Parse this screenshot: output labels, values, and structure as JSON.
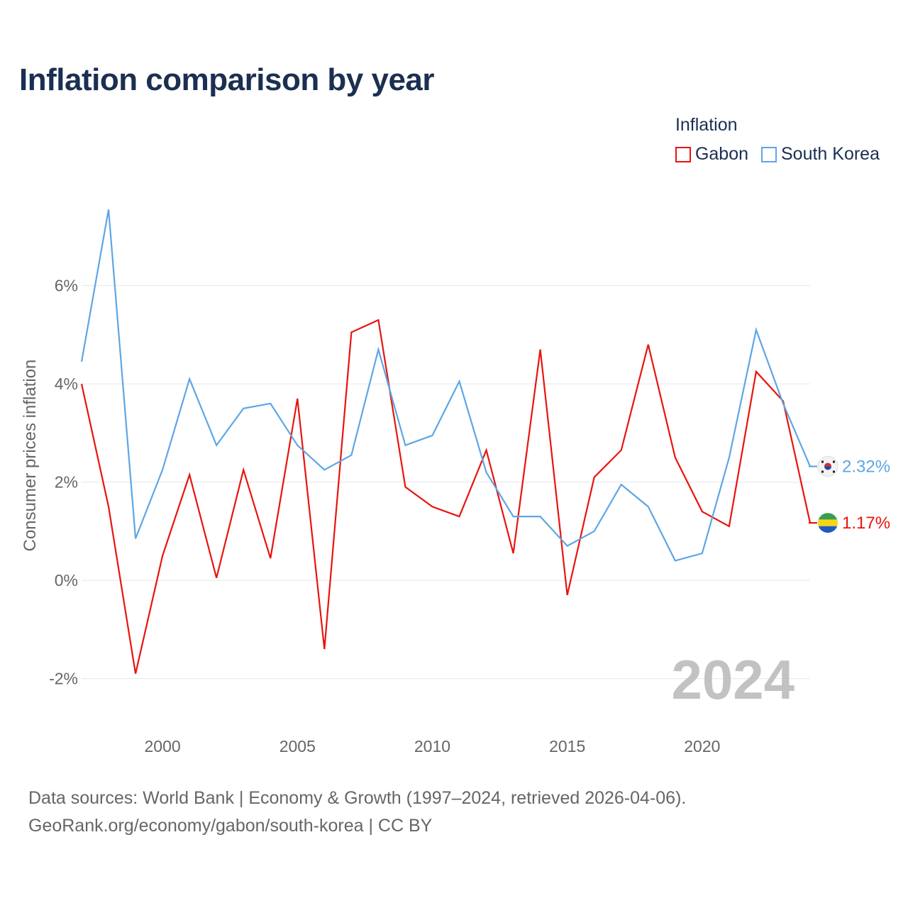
{
  "title": "Inflation comparison by year",
  "legend": {
    "title": "Inflation",
    "items": [
      {
        "label": "Gabon",
        "color": "#e8140d"
      },
      {
        "label": "South Korea",
        "color": "#5ea6e4"
      }
    ]
  },
  "chart_data": {
    "type": "line",
    "ylabel": "Consumer prices inflation",
    "xlim": [
      1997,
      2024
    ],
    "ylim": [
      -2.8,
      7.8
    ],
    "yticks": [
      -2,
      0,
      2,
      4,
      6
    ],
    "ytick_labels": [
      "-2%",
      "0%",
      "2%",
      "4%",
      "6%"
    ],
    "xticks": [
      2000,
      2005,
      2010,
      2015,
      2020
    ],
    "xtick_labels": [
      "2000",
      "2005",
      "2010",
      "2015",
      "2020"
    ],
    "year_label": "2024",
    "x": [
      1997,
      1998,
      1999,
      2000,
      2001,
      2002,
      2003,
      2004,
      2005,
      2006,
      2007,
      2008,
      2009,
      2010,
      2011,
      2012,
      2013,
      2014,
      2015,
      2016,
      2017,
      2018,
      2019,
      2020,
      2021,
      2022,
      2023,
      2024
    ],
    "series": [
      {
        "name": "Gabon",
        "color": "#e8140d",
        "end_label": "1.17%",
        "flag": "gabon-flag-icon",
        "values": [
          4.0,
          1.5,
          -1.9,
          0.5,
          2.15,
          0.05,
          2.25,
          0.45,
          3.7,
          -1.4,
          5.05,
          5.3,
          1.9,
          1.5,
          1.3,
          2.65,
          0.55,
          4.7,
          -0.3,
          2.1,
          2.65,
          4.8,
          2.5,
          1.4,
          1.1,
          4.25,
          3.65,
          1.17
        ]
      },
      {
        "name": "South Korea",
        "color": "#5ea6e4",
        "end_label": "2.32%",
        "flag": "south-korea-flag-icon",
        "values": [
          4.45,
          7.55,
          0.85,
          2.25,
          4.1,
          2.75,
          3.5,
          3.6,
          2.75,
          2.25,
          2.55,
          4.7,
          2.75,
          2.95,
          4.05,
          2.2,
          1.3,
          1.3,
          0.7,
          1.0,
          1.95,
          1.5,
          0.4,
          0.55,
          2.5,
          5.1,
          3.6,
          2.32
        ]
      }
    ]
  },
  "sources": {
    "line1": "Data sources: World Bank | Economy & Growth (1997–2024, retrieved 2026-04-06).",
    "line2": "GeoRank.org/economy/gabon/south-korea | CC BY"
  }
}
